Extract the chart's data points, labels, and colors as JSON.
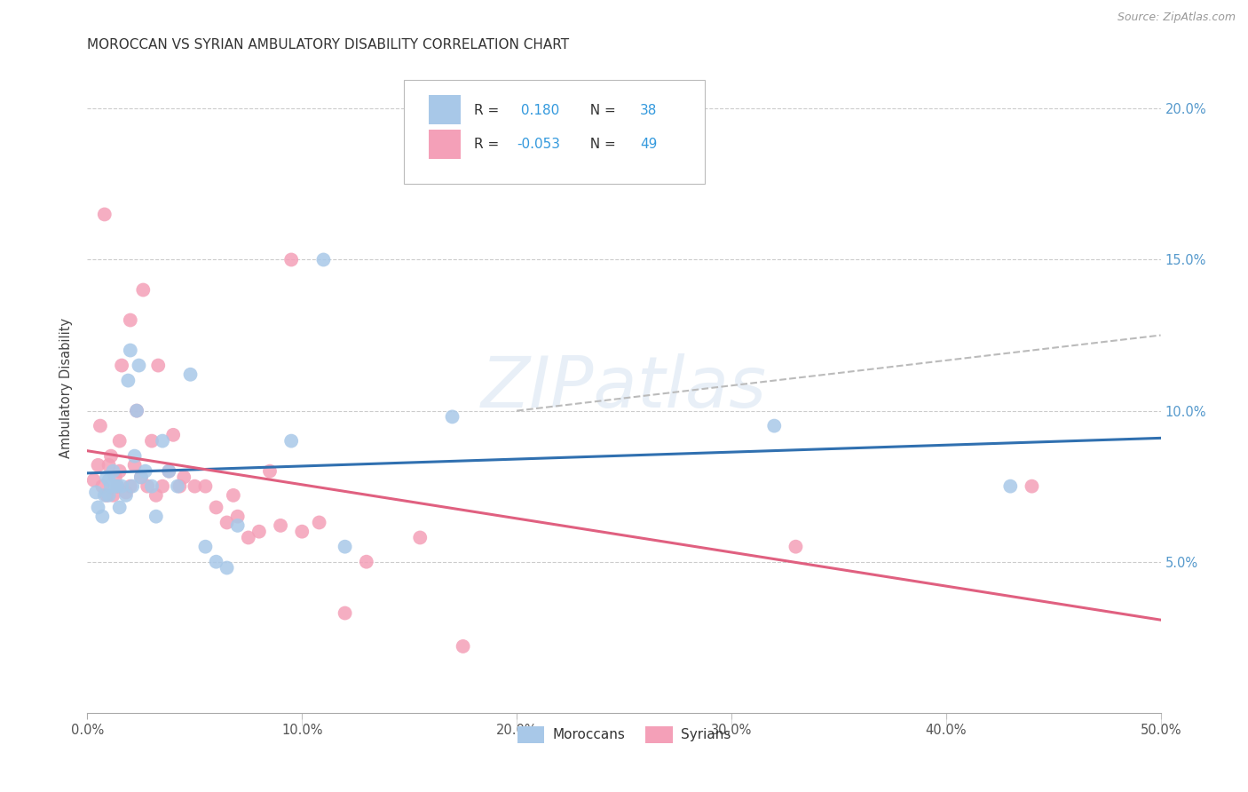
{
  "title": "MOROCCAN VS SYRIAN AMBULATORY DISABILITY CORRELATION CHART",
  "source": "Source: ZipAtlas.com",
  "ylabel": "Ambulatory Disability",
  "xlim": [
    0.0,
    0.5
  ],
  "ylim": [
    0.0,
    0.215
  ],
  "xlabel_vals": [
    0.0,
    0.1,
    0.2,
    0.3,
    0.4,
    0.5
  ],
  "xlabel_ticks": [
    "0.0%",
    "10.0%",
    "20.0%",
    "30.0%",
    "40.0%",
    "50.0%"
  ],
  "ylabel_vals": [
    0.05,
    0.1,
    0.15,
    0.2
  ],
  "ylabel_ticks": [
    "5.0%",
    "10.0%",
    "15.0%",
    "20.0%"
  ],
  "moroccan_R": 0.18,
  "moroccan_N": 38,
  "syrian_R": -0.053,
  "syrian_N": 49,
  "moroccan_color": "#A8C8E8",
  "syrian_color": "#F4A0B8",
  "moroccan_line_color": "#3070B0",
  "syrian_line_color": "#E06080",
  "dash_line_color": "#BBBBBB",
  "watermark": "ZIPatlas",
  "moroccan_x": [
    0.004,
    0.005,
    0.007,
    0.008,
    0.009,
    0.01,
    0.01,
    0.011,
    0.012,
    0.013,
    0.014,
    0.015,
    0.016,
    0.018,
    0.019,
    0.02,
    0.021,
    0.022,
    0.023,
    0.024,
    0.025,
    0.027,
    0.03,
    0.032,
    0.035,
    0.038,
    0.042,
    0.048,
    0.055,
    0.06,
    0.065,
    0.07,
    0.095,
    0.11,
    0.12,
    0.17,
    0.32,
    0.43
  ],
  "moroccan_y": [
    0.073,
    0.068,
    0.065,
    0.072,
    0.078,
    0.077,
    0.072,
    0.075,
    0.08,
    0.075,
    0.075,
    0.068,
    0.075,
    0.072,
    0.11,
    0.12,
    0.075,
    0.085,
    0.1,
    0.115,
    0.078,
    0.08,
    0.075,
    0.065,
    0.09,
    0.08,
    0.075,
    0.112,
    0.055,
    0.05,
    0.048,
    0.062,
    0.09,
    0.15,
    0.055,
    0.098,
    0.095,
    0.075
  ],
  "syrian_x": [
    0.003,
    0.005,
    0.006,
    0.007,
    0.008,
    0.009,
    0.01,
    0.011,
    0.012,
    0.013,
    0.014,
    0.015,
    0.015,
    0.016,
    0.018,
    0.02,
    0.02,
    0.022,
    0.023,
    0.025,
    0.026,
    0.028,
    0.03,
    0.032,
    0.033,
    0.035,
    0.038,
    0.04,
    0.043,
    0.045,
    0.05,
    0.055,
    0.06,
    0.065,
    0.068,
    0.07,
    0.075,
    0.08,
    0.085,
    0.09,
    0.095,
    0.1,
    0.108,
    0.12,
    0.13,
    0.155,
    0.175,
    0.33,
    0.44
  ],
  "syrian_y": [
    0.077,
    0.082,
    0.095,
    0.075,
    0.165,
    0.072,
    0.082,
    0.085,
    0.072,
    0.078,
    0.075,
    0.08,
    0.09,
    0.115,
    0.073,
    0.075,
    0.13,
    0.082,
    0.1,
    0.078,
    0.14,
    0.075,
    0.09,
    0.072,
    0.115,
    0.075,
    0.08,
    0.092,
    0.075,
    0.078,
    0.075,
    0.075,
    0.068,
    0.063,
    0.072,
    0.065,
    0.058,
    0.06,
    0.08,
    0.062,
    0.15,
    0.06,
    0.063,
    0.033,
    0.05,
    0.058,
    0.022,
    0.055,
    0.075
  ]
}
